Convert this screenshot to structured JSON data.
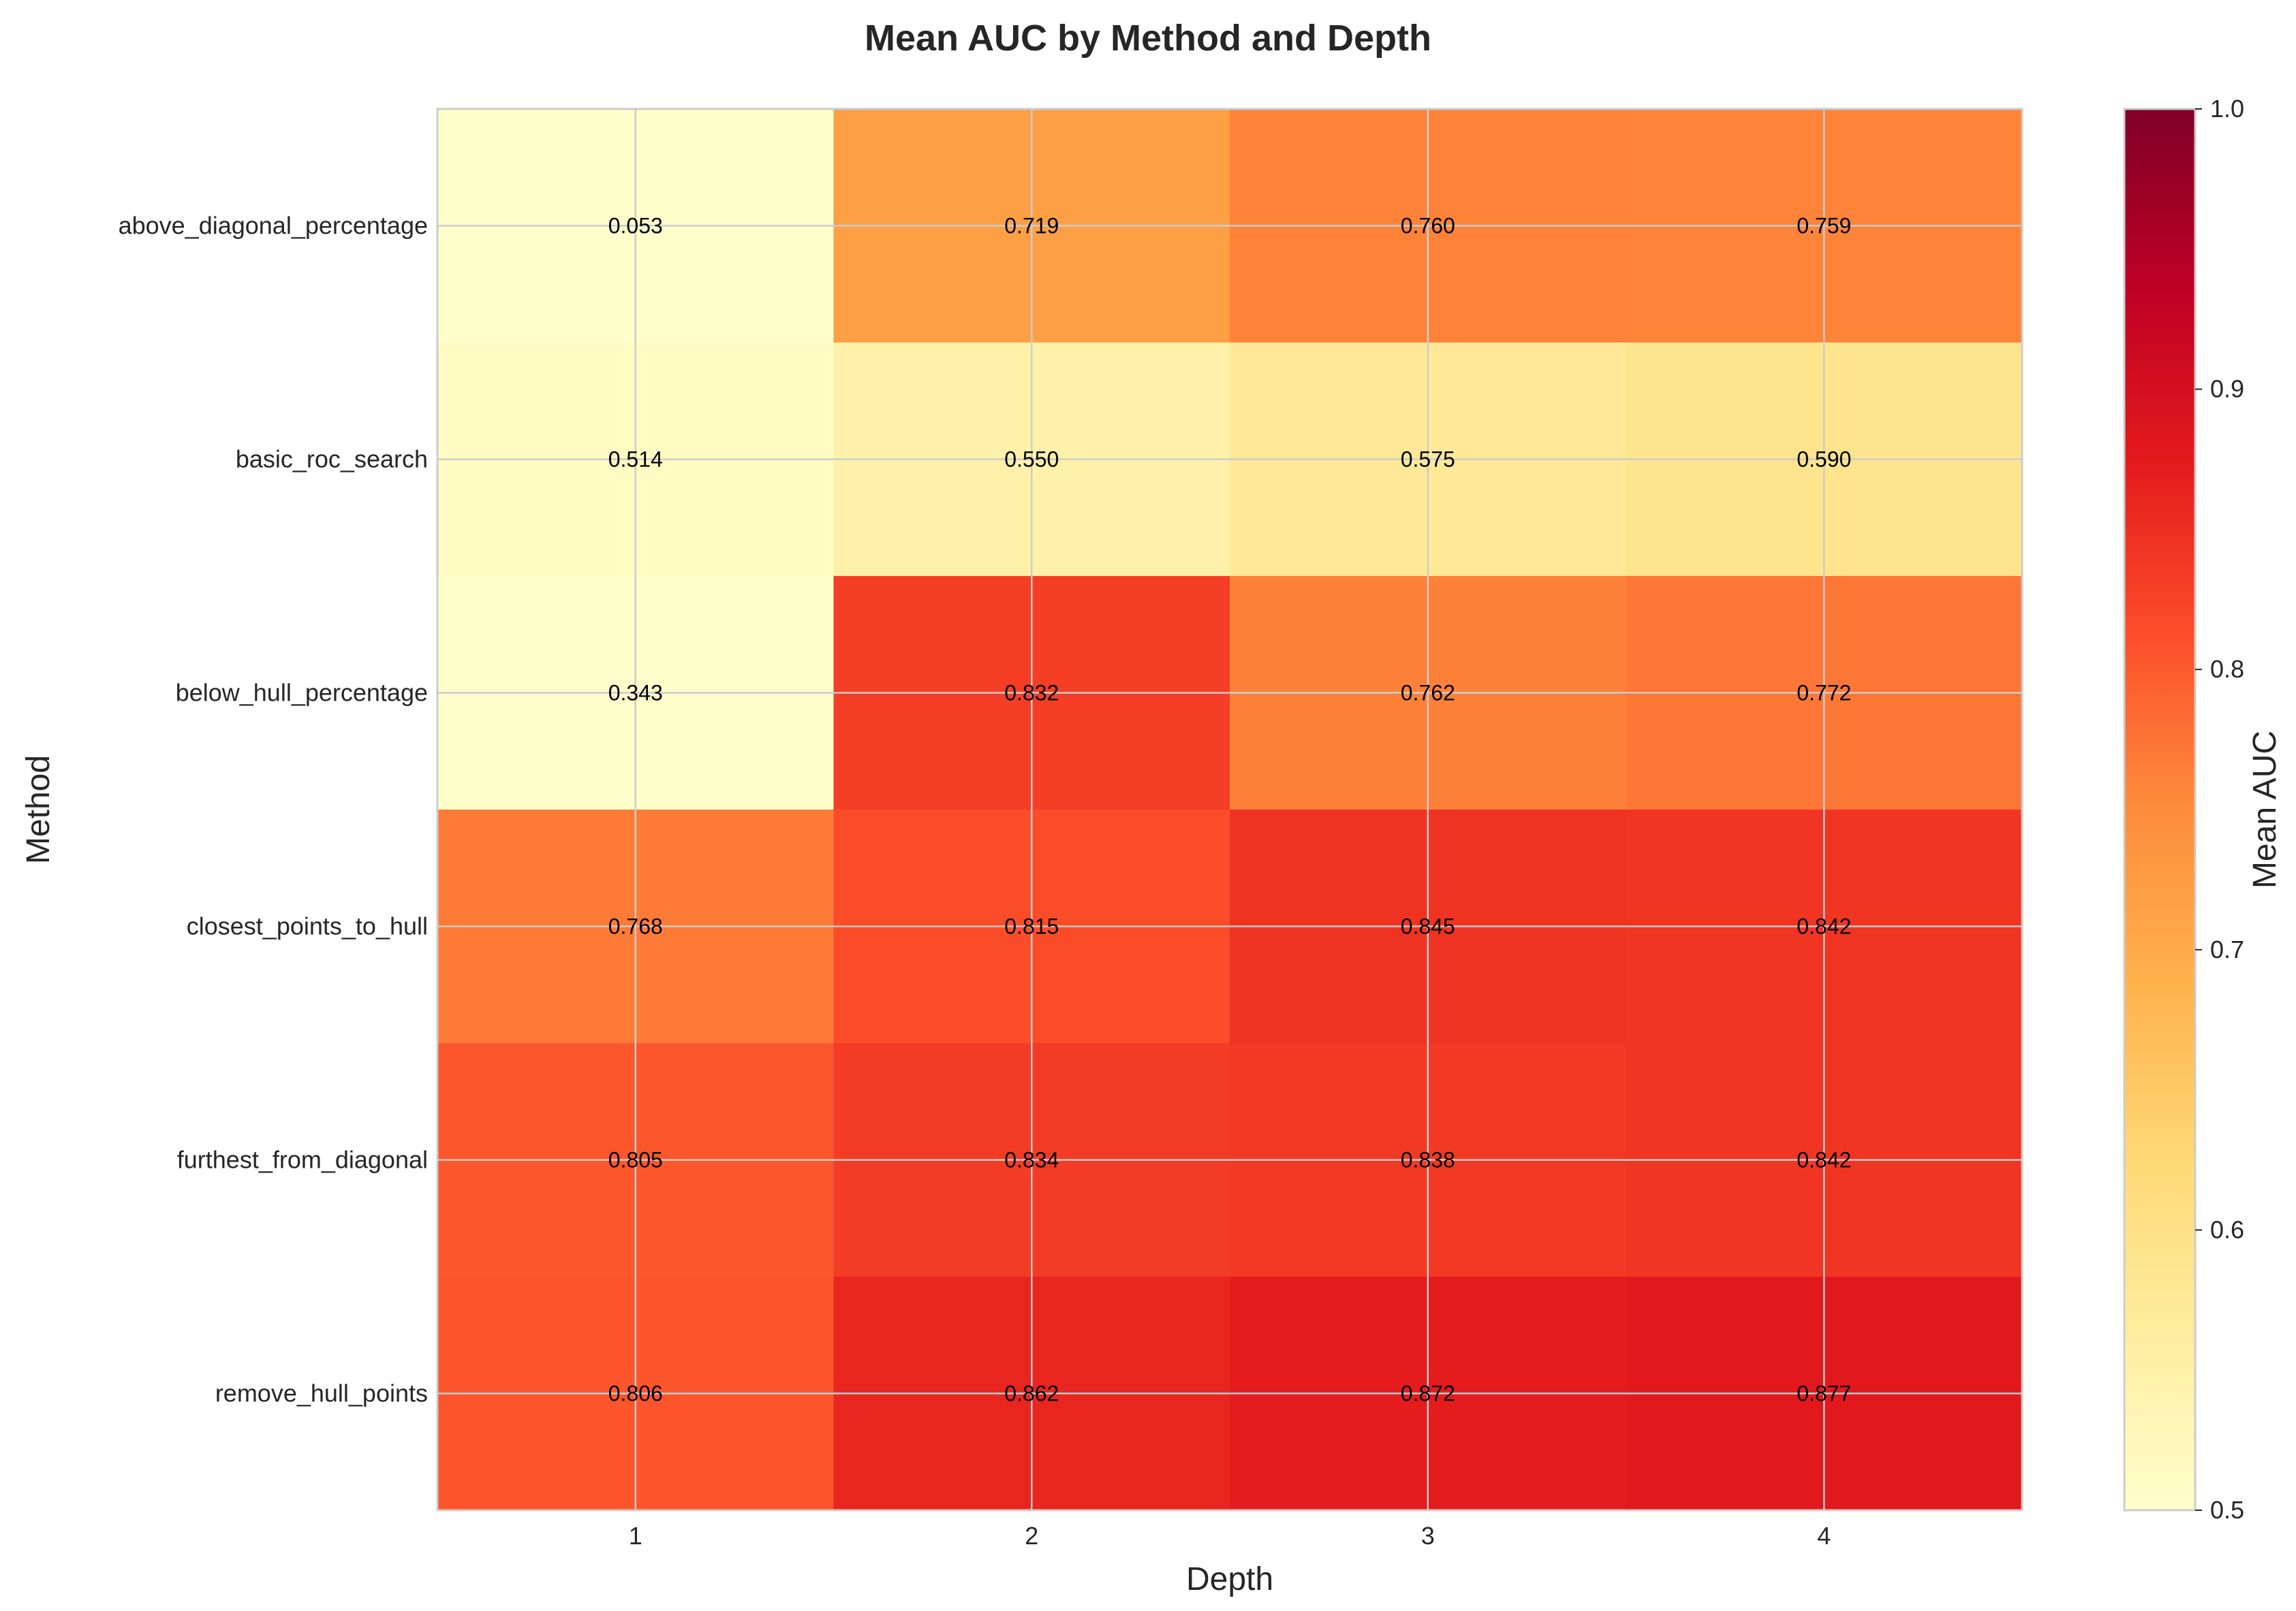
{
  "chart_data": {
    "type": "heatmap",
    "title": "Mean AUC by Method and Depth",
    "xlabel": "Depth",
    "ylabel": "Method",
    "x_categories": [
      "1",
      "2",
      "3",
      "4"
    ],
    "y_categories": [
      "above_diagonal_percentage",
      "basic_roc_search",
      "below_hull_percentage",
      "closest_points_to_hull",
      "furthest_from_diagonal",
      "remove_hull_points"
    ],
    "values": [
      [
        0.053,
        0.719,
        0.76,
        0.759
      ],
      [
        0.514,
        0.55,
        0.575,
        0.59
      ],
      [
        0.343,
        0.832,
        0.762,
        0.772
      ],
      [
        0.768,
        0.815,
        0.845,
        0.842
      ],
      [
        0.805,
        0.834,
        0.838,
        0.842
      ],
      [
        0.806,
        0.862,
        0.872,
        0.877
      ]
    ],
    "value_labels": [
      [
        "0.053",
        "0.719",
        "0.760",
        "0.759"
      ],
      [
        "0.514",
        "0.550",
        "0.575",
        "0.590"
      ],
      [
        "0.343",
        "0.832",
        "0.762",
        "0.772"
      ],
      [
        "0.768",
        "0.815",
        "0.845",
        "0.842"
      ],
      [
        "0.805",
        "0.834",
        "0.838",
        "0.842"
      ],
      [
        "0.806",
        "0.862",
        "0.872",
        "0.877"
      ]
    ],
    "colorbar": {
      "label": "Mean AUC",
      "range": [
        0.5,
        1.0
      ],
      "ticks": [
        "0.5",
        "0.6",
        "0.7",
        "0.8",
        "0.9",
        "1.0"
      ],
      "colormap": "YlOrRd"
    },
    "grid": true
  }
}
